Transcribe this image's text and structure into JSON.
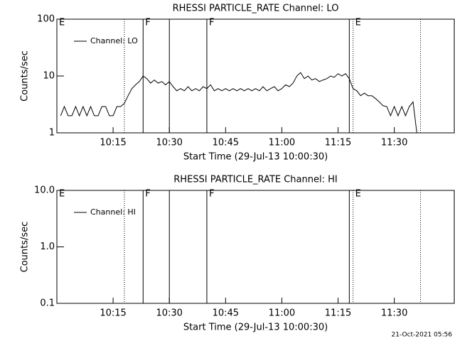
{
  "chart_data": [
    {
      "type": "line",
      "title": "RHESSI PARTICLE_RATE Channel: LO",
      "x_label": "Start Time (29-Jul-13 10:00:30)",
      "y_label": "Counts/sec",
      "log_y": true,
      "ylim": [
        1,
        100
      ],
      "yticks": [
        1,
        10,
        100
      ],
      "xlim": [
        "10:00",
        "11:46"
      ],
      "xticks": [
        "10:15",
        "10:30",
        "10:45",
        "11:00",
        "11:15",
        "11:30"
      ],
      "legend_position": "upper-left",
      "vlines": [
        {
          "x": "10:00",
          "style": "solid",
          "label": "E"
        },
        {
          "x": "10:18",
          "style": "dotted"
        },
        {
          "x": "10:23",
          "style": "solid",
          "label": "F"
        },
        {
          "x": "10:30",
          "style": "solid"
        },
        {
          "x": "10:40",
          "style": "solid",
          "label": "F"
        },
        {
          "x": "11:18",
          "style": "solid"
        },
        {
          "x": "11:19",
          "style": "dotted",
          "label": "E"
        },
        {
          "x": "11:37",
          "style": "dotted"
        }
      ],
      "x": [
        "10:01",
        "10:02",
        "10:03",
        "10:04",
        "10:05",
        "10:06",
        "10:07",
        "10:08",
        "10:09",
        "10:10",
        "10:11",
        "10:12",
        "10:13",
        "10:14",
        "10:15",
        "10:16",
        "10:17",
        "10:18",
        "10:19",
        "10:20",
        "10:21",
        "10:22",
        "10:23",
        "10:24",
        "10:25",
        "10:26",
        "10:27",
        "10:28",
        "10:29",
        "10:30",
        "10:31",
        "10:32",
        "10:33",
        "10:34",
        "10:35",
        "10:36",
        "10:37",
        "10:38",
        "10:39",
        "10:40",
        "10:41",
        "10:42",
        "10:43",
        "10:44",
        "10:45",
        "10:46",
        "10:47",
        "10:48",
        "10:49",
        "10:50",
        "10:51",
        "10:52",
        "10:53",
        "10:54",
        "10:55",
        "10:56",
        "10:57",
        "10:58",
        "10:59",
        "11:00",
        "11:01",
        "11:02",
        "11:03",
        "11:04",
        "11:05",
        "11:06",
        "11:07",
        "11:08",
        "11:09",
        "11:10",
        "11:11",
        "11:12",
        "11:13",
        "11:14",
        "11:15",
        "11:16",
        "11:17",
        "11:18",
        "11:19",
        "11:20",
        "11:21",
        "11:22",
        "11:23",
        "11:24",
        "11:25",
        "11:26",
        "11:27",
        "11:28",
        "11:29",
        "11:30",
        "11:31",
        "11:32",
        "11:33",
        "11:34",
        "11:35",
        "11:36"
      ],
      "series": [
        {
          "name": "Channel: LO",
          "color": "#000000",
          "values": [
            2,
            2.9,
            2,
            2,
            2.9,
            2,
            2.9,
            2,
            2.9,
            2,
            2,
            2.9,
            2.9,
            2,
            2,
            2.9,
            2.9,
            3.3,
            4.5,
            6,
            7,
            8,
            10,
            9,
            7.5,
            8.5,
            7.5,
            8,
            7,
            8,
            6.5,
            5.5,
            6,
            5.5,
            6.5,
            5.5,
            6,
            5.5,
            6.5,
            6,
            7,
            5.5,
            6,
            5.5,
            6,
            5.5,
            6,
            5.5,
            6,
            5.5,
            6,
            5.5,
            6,
            5.5,
            6.5,
            5.5,
            6,
            6.5,
            5.5,
            6,
            7,
            6.5,
            7.5,
            10,
            11.5,
            9,
            10,
            8.5,
            9,
            8,
            8.5,
            9,
            10,
            9.5,
            11,
            10,
            11,
            9,
            6,
            5.5,
            4.5,
            5,
            4.5,
            4.5,
            4,
            3.5,
            3,
            2.9,
            2,
            2.9,
            2,
            2.9,
            2,
            2.9,
            3.5,
            1
          ]
        }
      ]
    },
    {
      "type": "line",
      "title": "RHESSI PARTICLE_RATE Channel: HI",
      "x_label": "Start Time (29-Jul-13 10:00:30)",
      "y_label": "Counts/sec",
      "log_y": true,
      "ylim": [
        0.1,
        10
      ],
      "yticks": [
        0.1,
        {
          "value": 1,
          "label": "1.0"
        },
        {
          "value": 10,
          "label": "10.0"
        }
      ],
      "xlim": [
        "10:00",
        "11:46"
      ],
      "xticks": [
        "10:15",
        "10:30",
        "10:45",
        "11:00",
        "11:15",
        "11:30"
      ],
      "legend_position": "upper-left",
      "vlines": [
        {
          "x": "10:00",
          "style": "solid",
          "label": "E"
        },
        {
          "x": "10:18",
          "style": "dotted"
        },
        {
          "x": "10:23",
          "style": "solid",
          "label": "F"
        },
        {
          "x": "10:30",
          "style": "solid"
        },
        {
          "x": "10:40",
          "style": "solid",
          "label": "F"
        },
        {
          "x": "11:18",
          "style": "solid"
        },
        {
          "x": "11:19",
          "style": "dotted",
          "label": "E"
        },
        {
          "x": "11:37",
          "style": "dotted"
        }
      ],
      "x": [],
      "series": [
        {
          "name": "Channel: HI",
          "color": "#000000",
          "values": []
        }
      ]
    }
  ],
  "timestamp": "21-Oct-2021 05:56"
}
